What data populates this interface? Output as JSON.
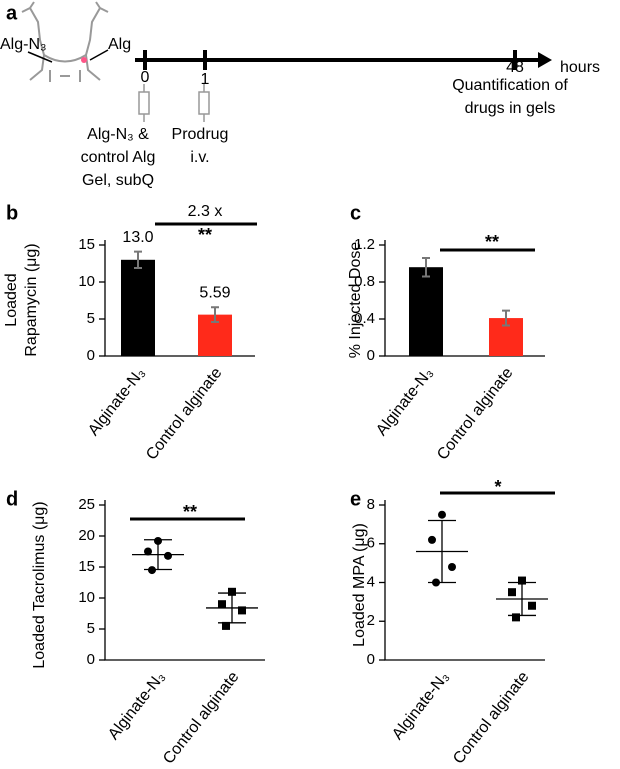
{
  "timeline": {
    "panel": "a",
    "labels": [
      "Alg-N₃",
      "Alg"
    ],
    "ticks": [
      "0",
      "1",
      "48"
    ],
    "unit": "hours",
    "steps": [
      [
        "Alg-N₃ &",
        "control Alg",
        "Gel, subQ"
      ],
      [
        "Prodrug",
        "i.v."
      ],
      [
        "Quantification of",
        "drugs in gels"
      ]
    ]
  },
  "chart_data": [
    {
      "type": "bar",
      "panel": "b",
      "ylabel": [
        "Loaded",
        "Rapamycin (μg)"
      ],
      "categories": [
        "Alginate-N₃",
        "Control alginate"
      ],
      "values": [
        13.0,
        5.59
      ],
      "value_labels": [
        "13.0",
        "5.59"
      ],
      "errors": [
        1.1,
        1.0
      ],
      "colors": [
        "#000000",
        "#ff2a1a"
      ],
      "ylim": [
        0,
        15
      ],
      "yticks": [
        0,
        5,
        10,
        15
      ],
      "annotations": [
        "2.3 x",
        "**"
      ]
    },
    {
      "type": "bar",
      "panel": "c",
      "ylabel": [
        "% Injected Dose"
      ],
      "categories": [
        "Alginate-N₃",
        "Control alginate"
      ],
      "values": [
        0.96,
        0.41
      ],
      "errors": [
        0.1,
        0.08
      ],
      "colors": [
        "#000000",
        "#ff2a1a"
      ],
      "ylim": [
        0,
        1.2
      ],
      "yticks": [
        0,
        0.4,
        0.8,
        1.2
      ],
      "annotations": [
        "**"
      ]
    },
    {
      "type": "dotplot",
      "panel": "d",
      "ylabel": [
        "Loaded Tacrolimus (μg)"
      ],
      "categories": [
        "Alginate-N₃",
        "Control alginate"
      ],
      "points": [
        [
          19.2,
          17.5,
          16.8,
          14.5
        ],
        [
          11.0,
          9.0,
          8.0,
          5.5
        ]
      ],
      "means": [
        17.0,
        8.4
      ],
      "sd": [
        2.4,
        2.4
      ],
      "markers": [
        "circle",
        "square"
      ],
      "ylim": [
        0,
        25
      ],
      "yticks": [
        0,
        5,
        10,
        15,
        20,
        25
      ],
      "annotations": [
        "**"
      ]
    },
    {
      "type": "dotplot",
      "panel": "e",
      "ylabel": [
        "Loaded MPA (μg)"
      ],
      "categories": [
        "Alginate-N₃",
        "Control alginate"
      ],
      "points": [
        [
          7.5,
          6.2,
          4.8,
          4.0
        ],
        [
          4.1,
          3.5,
          2.8,
          2.2
        ]
      ],
      "means": [
        5.6,
        3.15
      ],
      "sd": [
        1.6,
        0.85
      ],
      "markers": [
        "circle",
        "square"
      ],
      "ylim": [
        0,
        8
      ],
      "yticks": [
        0,
        2,
        4,
        6,
        8
      ],
      "annotations": [
        "*"
      ]
    }
  ]
}
